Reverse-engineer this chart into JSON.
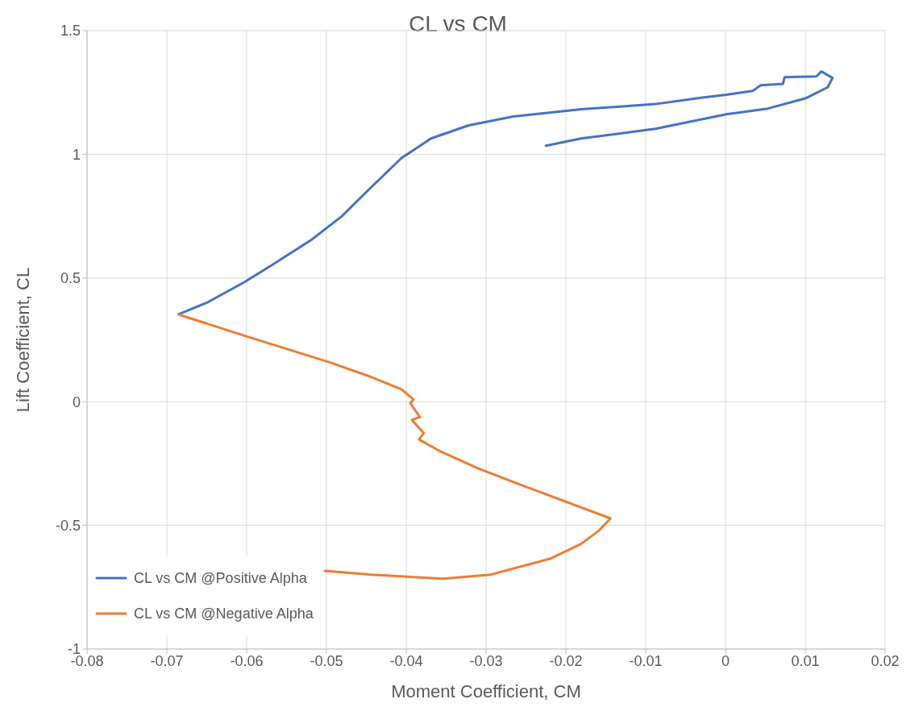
{
  "chart_data": {
    "type": "line",
    "title": "CL vs CM",
    "xlabel": "Moment Coefficient, CM",
    "ylabel": "Lift Coefficient, CL",
    "xlim": [
      -0.08,
      0.02
    ],
    "xticks": [
      -0.08,
      -0.07,
      -0.06,
      -0.05,
      -0.04,
      -0.03,
      -0.02,
      -0.01,
      0,
      0.01,
      0.02
    ],
    "ylim": [
      -1,
      1.5
    ],
    "yticks": [
      -1,
      -0.5,
      0,
      0.5,
      1,
      1.5
    ],
    "grid": true,
    "legend": "bottom left",
    "marker": "none",
    "line_style": "solid",
    "series": [
      {
        "name": "CL vs CM @Positive Alpha",
        "color": "#4472c4",
        "x": [
          -0.0685,
          -0.065,
          -0.0603,
          -0.0566,
          -0.0519,
          -0.0481,
          -0.0444,
          -0.0406,
          -0.0369,
          -0.0322,
          -0.0266,
          -0.0181,
          -0.0088,
          -0.0031,
          0.0001,
          0.0034,
          0.0044,
          0.0072,
          0.0074,
          0.0114,
          0.012,
          0.0134,
          0.0128,
          0.01,
          0.0053,
          0.0001,
          -0.0088,
          -0.0181,
          -0.0225
        ],
        "values": [
          0.354,
          0.4,
          0.483,
          0.557,
          0.654,
          0.749,
          0.867,
          0.985,
          1.064,
          1.117,
          1.153,
          1.182,
          1.203,
          1.229,
          1.241,
          1.256,
          1.279,
          1.285,
          1.312,
          1.315,
          1.335,
          1.309,
          1.271,
          1.226,
          1.185,
          1.162,
          1.103,
          1.064,
          1.035
        ]
      },
      {
        "name": "CL vs CM @Negative Alpha",
        "color": "#ed7d31",
        "x": [
          -0.0684,
          -0.0598,
          -0.0496,
          -0.0444,
          -0.0406,
          -0.0391,
          -0.0395,
          -0.0383,
          -0.0393,
          -0.0378,
          -0.0384,
          -0.0356,
          -0.0309,
          -0.0249,
          -0.0144,
          -0.0159,
          -0.0181,
          -0.0219,
          -0.0294,
          -0.0354,
          -0.0444,
          -0.0502
        ],
        "values": [
          0.351,
          0.262,
          0.159,
          0.1,
          0.05,
          0.009,
          -0.006,
          -0.062,
          -0.074,
          -0.127,
          -0.153,
          -0.203,
          -0.271,
          -0.345,
          -0.472,
          -0.522,
          -0.575,
          -0.634,
          -0.699,
          -0.716,
          -0.699,
          -0.684
        ]
      }
    ]
  }
}
